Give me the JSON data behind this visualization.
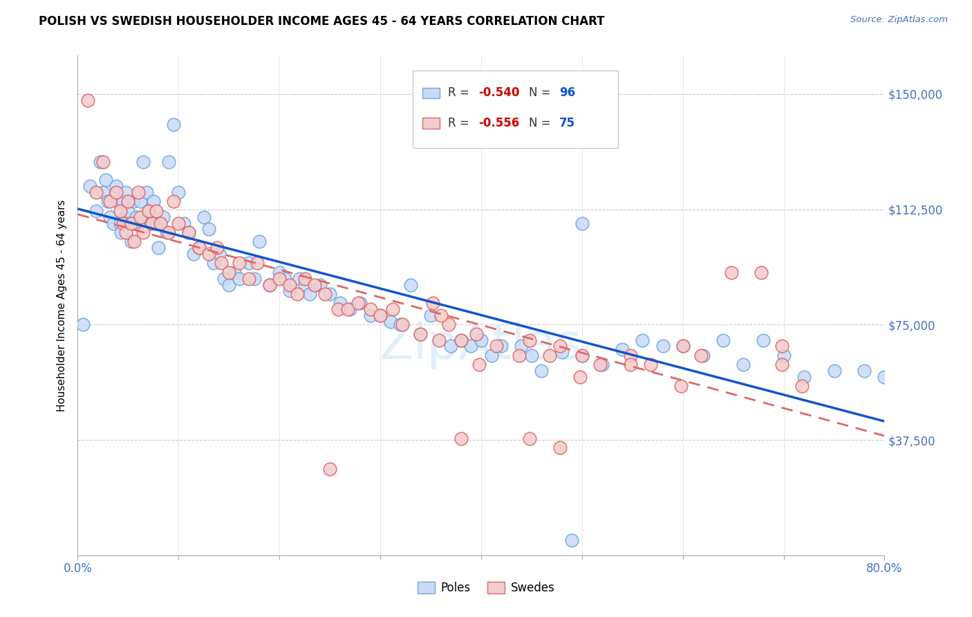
{
  "title": "POLISH VS SWEDISH HOUSEHOLDER INCOME AGES 45 - 64 YEARS CORRELATION CHART",
  "source": "Source: ZipAtlas.com",
  "ylabel": "Householder Income Ages 45 - 64 years",
  "xlim": [
    0.0,
    0.8
  ],
  "ylim": [
    0,
    162500
  ],
  "yticks": [
    0,
    37500,
    75000,
    112500,
    150000
  ],
  "ytick_labels": [
    "",
    "$37,500",
    "$75,000",
    "$112,500",
    "$150,000"
  ],
  "xticks": [
    0.0,
    0.1,
    0.2,
    0.3,
    0.4,
    0.5,
    0.6,
    0.7,
    0.8
  ],
  "poles_R": -0.54,
  "poles_N": 96,
  "swedes_R": -0.556,
  "swedes_N": 75,
  "blue_face": "#c9daf8",
  "blue_edge": "#6fa8dc",
  "pink_face": "#f4cccc",
  "pink_edge": "#e06666",
  "blue_line": "#1155cc",
  "pink_line": "#e06666",
  "r_color": "#cc0000",
  "n_color": "#1155cc",
  "tick_color": "#4472c4",
  "poles_x": [
    0.005,
    0.012,
    0.018,
    0.022,
    0.025,
    0.028,
    0.03,
    0.032,
    0.035,
    0.038,
    0.04,
    0.042,
    0.043,
    0.045,
    0.047,
    0.048,
    0.05,
    0.052,
    0.053,
    0.055,
    0.058,
    0.06,
    0.062,
    0.065,
    0.068,
    0.07,
    0.072,
    0.075,
    0.078,
    0.08,
    0.085,
    0.088,
    0.09,
    0.095,
    0.1,
    0.105,
    0.11,
    0.115,
    0.12,
    0.125,
    0.13,
    0.135,
    0.14,
    0.145,
    0.15,
    0.155,
    0.16,
    0.17,
    0.175,
    0.18,
    0.19,
    0.2,
    0.205,
    0.21,
    0.22,
    0.225,
    0.23,
    0.24,
    0.25,
    0.26,
    0.27,
    0.28,
    0.29,
    0.3,
    0.31,
    0.32,
    0.33,
    0.34,
    0.35,
    0.37,
    0.38,
    0.39,
    0.4,
    0.41,
    0.42,
    0.44,
    0.45,
    0.46,
    0.48,
    0.5,
    0.52,
    0.54,
    0.56,
    0.58,
    0.6,
    0.62,
    0.64,
    0.66,
    0.68,
    0.7,
    0.72,
    0.75,
    0.78,
    0.8,
    0.49,
    0.5
  ],
  "poles_y": [
    75000,
    120000,
    112000,
    128000,
    118000,
    122000,
    115000,
    110000,
    108000,
    120000,
    115000,
    108000,
    105000,
    115000,
    110000,
    118000,
    112000,
    108000,
    102000,
    115000,
    110000,
    108000,
    115000,
    128000,
    118000,
    112000,
    108000,
    115000,
    108000,
    100000,
    110000,
    105000,
    128000,
    140000,
    118000,
    108000,
    105000,
    98000,
    100000,
    110000,
    106000,
    95000,
    98000,
    90000,
    88000,
    92000,
    90000,
    95000,
    90000,
    102000,
    88000,
    92000,
    90000,
    86000,
    90000,
    88000,
    85000,
    88000,
    85000,
    82000,
    80000,
    82000,
    78000,
    78000,
    76000,
    75000,
    88000,
    72000,
    78000,
    68000,
    70000,
    68000,
    70000,
    65000,
    68000,
    68000,
    65000,
    60000,
    66000,
    65000,
    62000,
    67000,
    70000,
    68000,
    68000,
    65000,
    70000,
    62000,
    70000,
    65000,
    58000,
    60000,
    60000,
    58000,
    5000,
    108000
  ],
  "swedes_x": [
    0.01,
    0.018,
    0.025,
    0.032,
    0.038,
    0.042,
    0.045,
    0.048,
    0.05,
    0.053,
    0.056,
    0.06,
    0.062,
    0.065,
    0.07,
    0.074,
    0.078,
    0.082,
    0.09,
    0.095,
    0.1,
    0.11,
    0.12,
    0.13,
    0.138,
    0.142,
    0.15,
    0.16,
    0.17,
    0.178,
    0.19,
    0.2,
    0.21,
    0.218,
    0.225,
    0.235,
    0.245,
    0.258,
    0.268,
    0.278,
    0.29,
    0.3,
    0.312,
    0.322,
    0.34,
    0.358,
    0.368,
    0.38,
    0.395,
    0.415,
    0.438,
    0.448,
    0.478,
    0.5,
    0.518,
    0.548,
    0.568,
    0.6,
    0.618,
    0.648,
    0.678,
    0.698,
    0.38,
    0.448,
    0.478,
    0.352,
    0.36,
    0.398,
    0.25,
    0.468,
    0.498,
    0.548,
    0.598,
    0.698,
    0.718
  ],
  "swedes_y": [
    148000,
    118000,
    128000,
    115000,
    118000,
    112000,
    108000,
    105000,
    115000,
    108000,
    102000,
    118000,
    110000,
    105000,
    112000,
    108000,
    112000,
    108000,
    105000,
    115000,
    108000,
    105000,
    100000,
    98000,
    100000,
    95000,
    92000,
    95000,
    90000,
    95000,
    88000,
    90000,
    88000,
    85000,
    90000,
    88000,
    85000,
    80000,
    80000,
    82000,
    80000,
    78000,
    80000,
    75000,
    72000,
    70000,
    75000,
    70000,
    72000,
    68000,
    65000,
    70000,
    68000,
    65000,
    62000,
    65000,
    62000,
    68000,
    65000,
    92000,
    92000,
    68000,
    38000,
    38000,
    35000,
    82000,
    78000,
    62000,
    28000,
    65000,
    58000,
    62000,
    55000,
    62000,
    55000
  ]
}
